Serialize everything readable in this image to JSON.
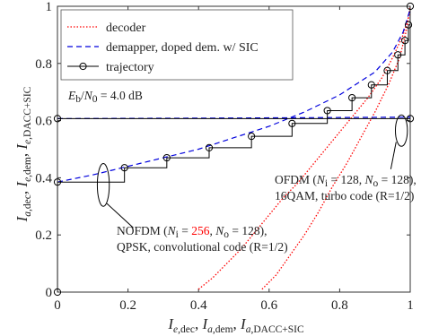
{
  "chart_data": {
    "type": "line",
    "xlabel": "I_{e,dec}, I_{a,dem}, I_{a,DACC+SIC}",
    "ylabel": "I_{a,dec}, I_{e,dem}, I_{e,DACC+SIC}",
    "xlim": [
      0,
      1
    ],
    "ylim": [
      0,
      1
    ],
    "x_ticks": [
      "0",
      "0.2",
      "0.4",
      "0.6",
      "0.8",
      "1"
    ],
    "y_ticks": [
      "0",
      "0.2",
      "0.4",
      "0.6",
      "0.8",
      "1"
    ],
    "legend_position": "top-left",
    "legend": [
      "decoder",
      "demapper, doped dem. w/ SIC",
      "trajectory"
    ],
    "annotations": {
      "snr": "E_b/N_0 = 4.0 dB",
      "ofdm": [
        "OFDM (N_i = 128, N_o = 128),",
        "16QAM, turbo code (R=1/2)"
      ],
      "nofdm": [
        "NOFDM (N_i = 256, N_o = 128),",
        "QPSK, convolutional code (R=1/2)"
      ]
    },
    "colors": {
      "decoder": "#ff0000",
      "demapper": "#0000dd",
      "trajectory": "#000000",
      "highlight_ni": "#ff0000"
    },
    "series": [
      {
        "name": "decoder",
        "style": "dotted",
        "x": [
          0.4,
          0.44,
          0.48,
          0.52,
          0.56,
          0.6,
          0.64,
          0.68,
          0.72,
          0.76,
          0.8,
          0.84,
          0.88,
          0.92,
          0.95,
          0.98,
          0.995,
          1.0
        ],
        "y": [
          0.01,
          0.05,
          0.1,
          0.15,
          0.21,
          0.27,
          0.33,
          0.38,
          0.44,
          0.5,
          0.56,
          0.62,
          0.68,
          0.75,
          0.82,
          0.9,
          0.96,
          1.0
        ]
      },
      {
        "name": "decoder",
        "style": "dotted",
        "x": [
          0.58,
          0.62,
          0.66,
          0.7,
          0.74,
          0.78,
          0.82,
          0.86,
          0.9,
          0.94,
          0.97,
          0.99,
          1.0
        ],
        "y": [
          0.01,
          0.06,
          0.13,
          0.2,
          0.28,
          0.37,
          0.45,
          0.54,
          0.63,
          0.73,
          0.82,
          0.92,
          1.0
        ]
      },
      {
        "name": "demapper, doped dem. w/ SIC",
        "style": "dashed",
        "x": [
          0.0,
          0.1,
          0.2,
          0.3,
          0.4,
          0.5,
          0.6,
          0.7,
          0.8,
          0.9,
          0.95,
          0.98,
          1.0
        ],
        "y": [
          0.385,
          0.41,
          0.44,
          0.47,
          0.5,
          0.54,
          0.58,
          0.63,
          0.69,
          0.77,
          0.84,
          0.91,
          0.99
        ]
      },
      {
        "name": "demapper, doped dem. w/ SIC",
        "style": "dashed",
        "x": [
          0.0,
          0.5,
          1.0
        ],
        "y": [
          0.607,
          0.609,
          0.612
        ]
      },
      {
        "name": "trajectory",
        "style": "solid-marker",
        "x": [
          0.0,
          0.0,
          0.19,
          0.19,
          0.31,
          0.31,
          0.43,
          0.43,
          0.55,
          0.55,
          0.665,
          0.665,
          0.765,
          0.765,
          0.835,
          0.835,
          0.89,
          0.89,
          0.935,
          0.935,
          0.965,
          0.965,
          0.985,
          0.985,
          0.995,
          0.995,
          1.0,
          1.0
        ],
        "y": [
          0.0,
          0.385,
          0.385,
          0.435,
          0.435,
          0.47,
          0.47,
          0.505,
          0.505,
          0.545,
          0.545,
          0.59,
          0.59,
          0.635,
          0.635,
          0.68,
          0.68,
          0.725,
          0.725,
          0.775,
          0.775,
          0.83,
          0.83,
          0.88,
          0.88,
          0.935,
          0.935,
          1.0
        ],
        "markers": [
          [
            0.0,
            0.0
          ],
          [
            0.0,
            0.385
          ],
          [
            0.19,
            0.435
          ],
          [
            0.31,
            0.47
          ],
          [
            0.43,
            0.505
          ],
          [
            0.55,
            0.545
          ],
          [
            0.665,
            0.59
          ],
          [
            0.765,
            0.635
          ],
          [
            0.835,
            0.68
          ],
          [
            0.89,
            0.725
          ],
          [
            0.935,
            0.775
          ],
          [
            0.965,
            0.83
          ],
          [
            0.985,
            0.88
          ],
          [
            0.995,
            0.935
          ],
          [
            1.0,
            1.0
          ]
        ]
      },
      {
        "name": "trajectory",
        "style": "solid-marker",
        "x": [
          0.0,
          1.0
        ],
        "y": [
          0.607,
          0.607
        ],
        "markers": [
          [
            0.0,
            0.607
          ],
          [
            1.0,
            0.607
          ]
        ]
      }
    ]
  }
}
